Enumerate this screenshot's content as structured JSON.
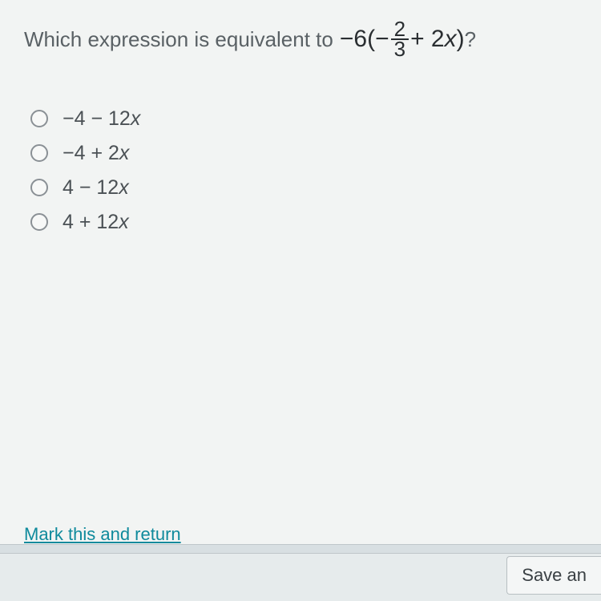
{
  "question": {
    "prefix": "Which expression is equivalent to",
    "expr_lead": "−6(−",
    "frac_num": "2",
    "frac_den": "3",
    "expr_tail_a": " + 2",
    "expr_var": "x",
    "expr_tail_b": ")",
    "suffix": "?"
  },
  "options": [
    {
      "prefix": "−4 − 12",
      "var": "x"
    },
    {
      "prefix": "−4 + 2",
      "var": "x"
    },
    {
      "prefix": "4 − 12",
      "var": "x"
    },
    {
      "prefix": "4 + 12",
      "var": "x"
    }
  ],
  "footer": {
    "mark_return": "Mark this and return",
    "save": "Save an"
  },
  "colors": {
    "background": "#d8dfe2",
    "panel": "#f2f4f3",
    "text": "#5a6165",
    "link": "#0f8a9c"
  }
}
